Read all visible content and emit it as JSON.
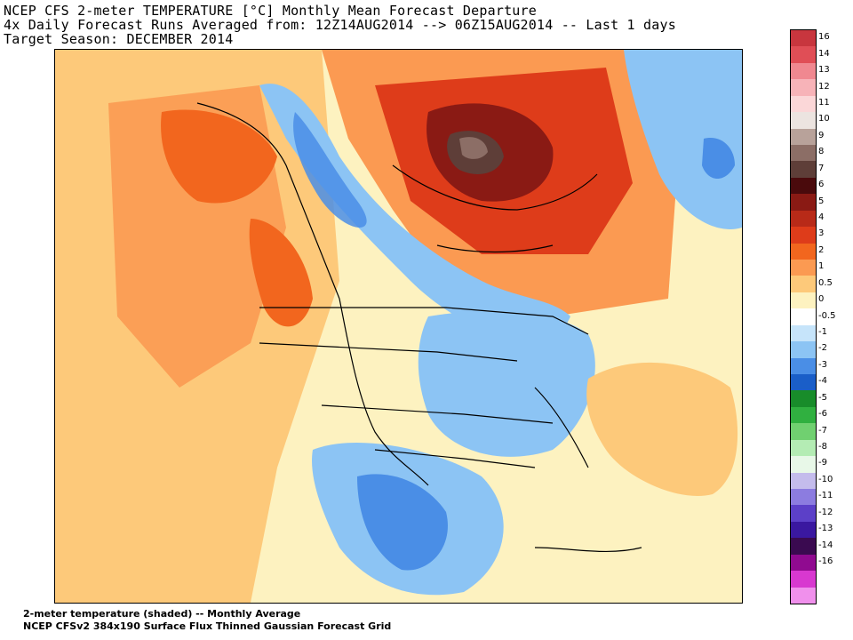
{
  "header": {
    "line1": "NCEP CFS 2-meter TEMPERATURE [°C] Monthly Mean Forecast Departure",
    "line2": "4x Daily Forecast Runs Averaged from: 12Z14AUG2014 --> 06Z15AUG2014 -- Last 1 days",
    "line3": "Target Season: DECEMBER 2014"
  },
  "footer": {
    "line1": "2-meter temperature (shaded) -- Monthly Average",
    "line2": "NCEP CFSv2 384x190 Surface Flux Thinned Gaussian Forecast Grid"
  },
  "colorbar": {
    "bins": [
      {
        "label": "16",
        "color": "#c8363e"
      },
      {
        "label": "14",
        "color": "#e04e56"
      },
      {
        "label": "13",
        "color": "#f08890"
      },
      {
        "label": "12",
        "color": "#f7b3b8"
      },
      {
        "label": "11",
        "color": "#fbd7d8"
      },
      {
        "label": "10",
        "color": "#ece4e0"
      },
      {
        "label": "9",
        "color": "#b8a29a"
      },
      {
        "label": "8",
        "color": "#8c6e66"
      },
      {
        "label": "7",
        "color": "#5e3e38"
      },
      {
        "label": "6",
        "color": "#4a0a0c"
      },
      {
        "label": "5",
        "color": "#8a1a14"
      },
      {
        "label": "4",
        "color": "#b82a18"
      },
      {
        "label": "3",
        "color": "#de3c1a"
      },
      {
        "label": "2",
        "color": "#f2661e"
      },
      {
        "label": "1",
        "color": "#fb9a52"
      },
      {
        "label": "0.5",
        "color": "#fdc97a"
      },
      {
        "label": "0",
        "color": "#fdf2c0"
      },
      {
        "label": "-0.5",
        "color": "#ffffff"
      },
      {
        "label": "-1",
        "color": "#c6e4fa"
      },
      {
        "label": "-2",
        "color": "#8cc4f4"
      },
      {
        "label": "-3",
        "color": "#4a8ee6"
      },
      {
        "label": "-4",
        "color": "#1a5ec8"
      },
      {
        "label": "-5",
        "color": "#188c2a"
      },
      {
        "label": "-6",
        "color": "#30b040"
      },
      {
        "label": "-7",
        "color": "#70d070"
      },
      {
        "label": "-8",
        "color": "#b4ecb4"
      },
      {
        "label": "-9",
        "color": "#e8f8e8"
      },
      {
        "label": "-10",
        "color": "#c4bcec"
      },
      {
        "label": "-11",
        "color": "#8c7ce0"
      },
      {
        "label": "-12",
        "color": "#5c40c8"
      },
      {
        "label": "-13",
        "color": "#3a18a0"
      },
      {
        "label": "-14",
        "color": "#3a0a50"
      },
      {
        "label": "-16",
        "color": "#900a90"
      },
      {
        "label": "",
        "color": "#d838d0"
      },
      {
        "label": "",
        "color": "#f090ec"
      }
    ]
  },
  "map": {
    "regions": [
      {
        "name": "pacific-warm",
        "value": 0.5,
        "color": "#fdc97a"
      },
      {
        "name": "alaska-warm",
        "value": 2,
        "color": "#f2661e"
      },
      {
        "name": "pacific-nw-warm",
        "value": 2,
        "color": "#f2661e"
      },
      {
        "name": "hudson-bay-peak",
        "value": 7,
        "color": "#5e3e38"
      },
      {
        "name": "hudson-bay-core",
        "value": 5,
        "color": "#8a1a14"
      },
      {
        "name": "canada-warm",
        "value": 3,
        "color": "#de3c1a"
      },
      {
        "name": "rockies-cold-band",
        "value": -1,
        "color": "#8cc4f4"
      },
      {
        "name": "great-lakes-cold",
        "value": -1,
        "color": "#8cc4f4"
      },
      {
        "name": "texas-gulf-cold",
        "value": -2,
        "color": "#4a8ee6"
      },
      {
        "name": "greenland-sea-cold",
        "value": -1,
        "color": "#8cc4f4"
      },
      {
        "name": "atlantic-warm",
        "value": 0.5,
        "color": "#fdc97a"
      }
    ]
  }
}
